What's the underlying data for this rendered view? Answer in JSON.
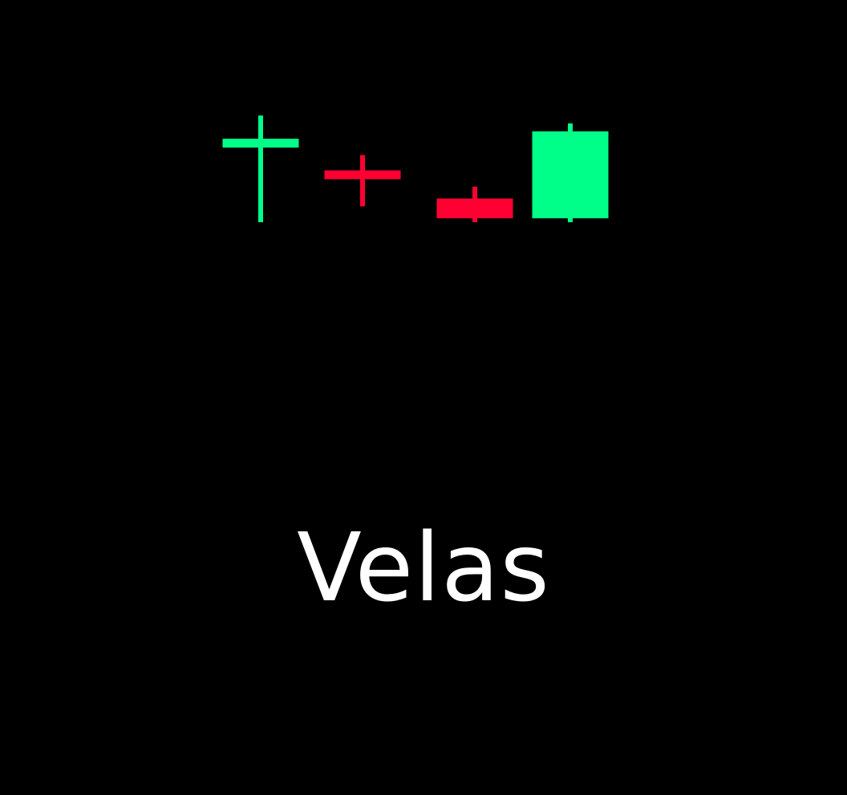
{
  "title": "Velas",
  "colors": {
    "background": "#000000",
    "bullish": "#00ff88",
    "bearish": "#ff0033",
    "title_text": "#ffffff"
  },
  "chart_data": {
    "type": "candlestick",
    "title": "Velas",
    "xlabel": "",
    "ylabel": "",
    "grid": false,
    "axes_visible": false,
    "ylim": [
      0,
      100
    ],
    "candles": [
      {
        "direction": "bullish",
        "open": 80,
        "close": 82,
        "high": 88,
        "low": 61
      },
      {
        "direction": "bearish",
        "open": 73,
        "close": 73,
        "high": 78,
        "low": 65
      },
      {
        "direction": "bearish",
        "open": 67,
        "close": 62,
        "high": 70,
        "low": 61
      },
      {
        "direction": "bullish",
        "open": 62,
        "close": 84,
        "high": 86,
        "low": 61
      }
    ]
  }
}
